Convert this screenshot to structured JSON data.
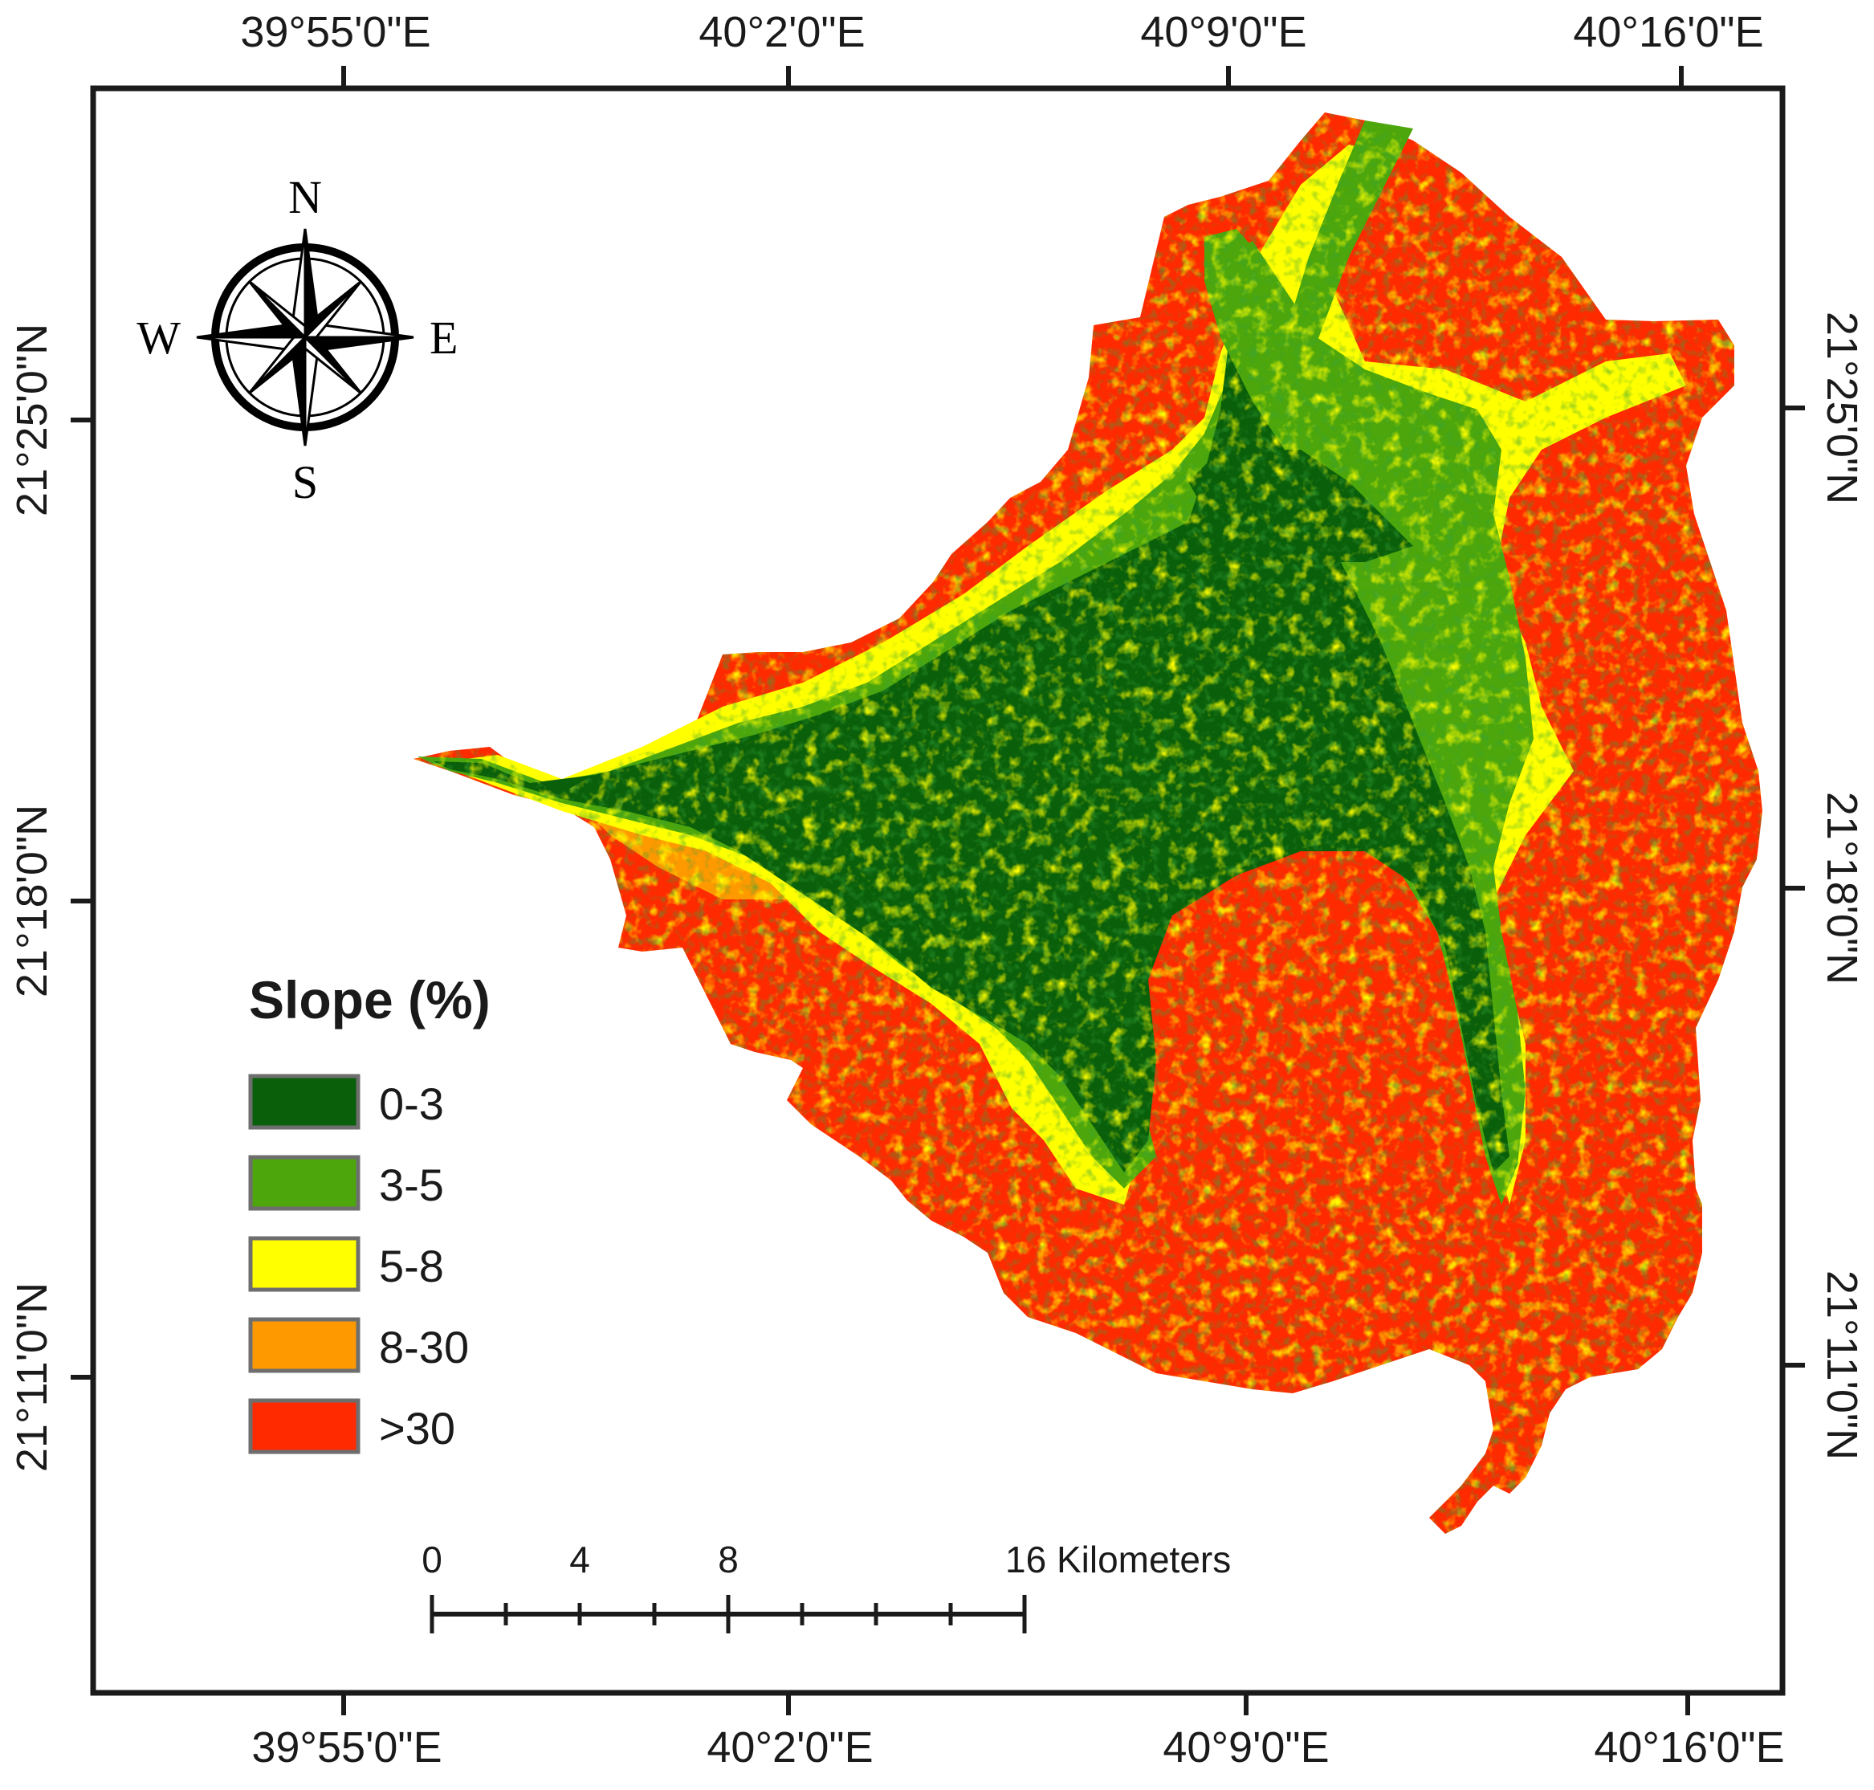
{
  "map": {
    "top_lon_labels": [
      "39°55'0\"E",
      "40°2'0\"E",
      "40°9'0\"E",
      "40°16'0\"E"
    ],
    "bottom_lon_labels": [
      "39°55'0\"E",
      "40°2'0\"E",
      "40°9'0\"E",
      "40°16'0\"E"
    ],
    "left_lat_labels": [
      "21°25'0\"N",
      "21°18'0\"N",
      "21°11'0\"N"
    ],
    "right_lat_labels": [
      "21°25'0\"N",
      "21°18'0\"N",
      "21°11'0\"N"
    ]
  },
  "compass": {
    "n": "N",
    "s": "S",
    "e": "E",
    "w": "W",
    "icon": "compass-rose-icon"
  },
  "legend": {
    "title": "Slope (%)",
    "classes": [
      {
        "label": "0-3",
        "color": "#0a5f0a"
      },
      {
        "label": "3-5",
        "color": "#4ca60c"
      },
      {
        "label": "5-8",
        "color": "#ffff00"
      },
      {
        "label": "8-30",
        "color": "#ff9900"
      },
      {
        "label": ">30",
        "color": "#ff2a00"
      }
    ]
  },
  "scale_bar": {
    "labels": [
      "0",
      "4",
      "8",
      "16 Kilometers"
    ]
  },
  "colors": {
    "frame": "#1a1a1a",
    "background": "#ffffff"
  }
}
